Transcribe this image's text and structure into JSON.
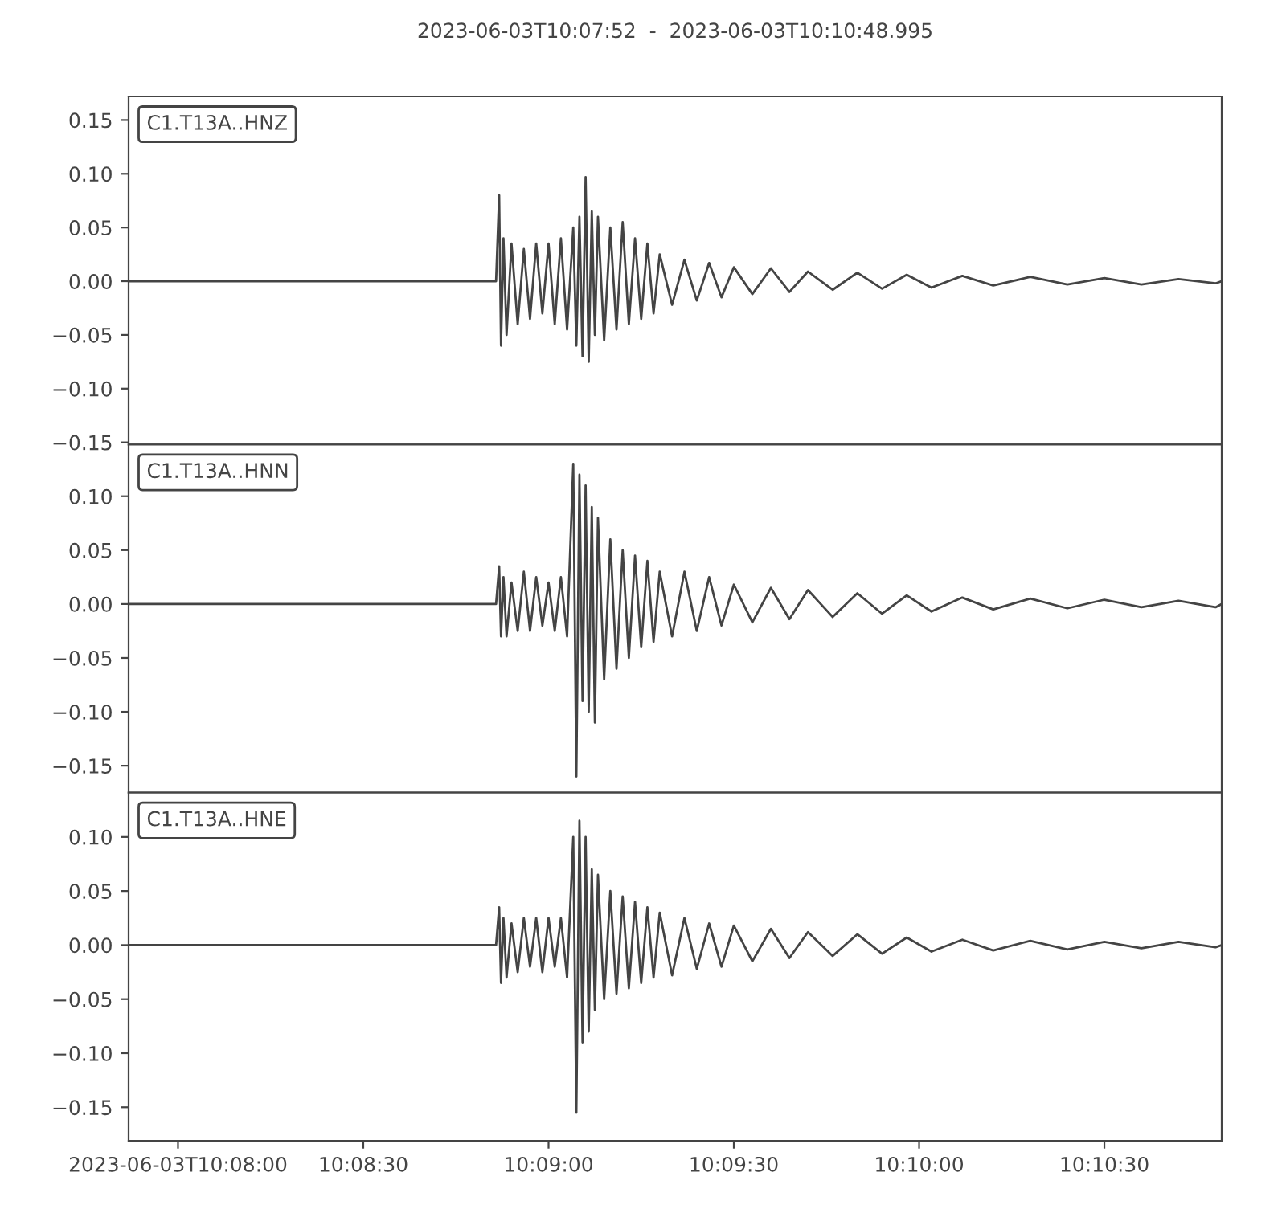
{
  "chart_data": [
    {
      "type": "line",
      "title": "2023-06-03T10:07:52  -  2023-06-03T10:10:48.995",
      "legend": "top left",
      "tick_labels": "y",
      "grid": false,
      "marker": "none",
      "line_style": "solid",
      "x": [
        "2023-06-03T10:07:52",
        "2023-06-03T10:08:51.5",
        "2023-06-03T10:08:52",
        "2023-06-03T10:08:52.3",
        "2023-06-03T10:08:52.7",
        "2023-06-03T10:08:53.2",
        "2023-06-03T10:08:54",
        "2023-06-03T10:08:55",
        "2023-06-03T10:08:56",
        "2023-06-03T10:08:57",
        "2023-06-03T10:08:58",
        "2023-06-03T10:08:59",
        "2023-06-03T10:09:00",
        "2023-06-03T10:09:01",
        "2023-06-03T10:09:02",
        "2023-06-03T10:09:03",
        "2023-06-03T10:09:04",
        "2023-06-03T10:09:04.5",
        "2023-06-03T10:09:05",
        "2023-06-03T10:09:05.5",
        "2023-06-03T10:09:06",
        "2023-06-03T10:09:06.5",
        "2023-06-03T10:09:07",
        "2023-06-03T10:09:07.5",
        "2023-06-03T10:09:08",
        "2023-06-03T10:09:09",
        "2023-06-03T10:09:10",
        "2023-06-03T10:09:11",
        "2023-06-03T10:09:12",
        "2023-06-03T10:09:13",
        "2023-06-03T10:09:14",
        "2023-06-03T10:09:15",
        "2023-06-03T10:09:16",
        "2023-06-03T10:09:17",
        "2023-06-03T10:09:18",
        "2023-06-03T10:09:20",
        "2023-06-03T10:09:22",
        "2023-06-03T10:09:24",
        "2023-06-03T10:09:26",
        "2023-06-03T10:09:28",
        "2023-06-03T10:09:30",
        "2023-06-03T10:09:33",
        "2023-06-03T10:09:36",
        "2023-06-03T10:09:39",
        "2023-06-03T10:09:42",
        "2023-06-03T10:09:46",
        "2023-06-03T10:09:50",
        "2023-06-03T10:09:54",
        "2023-06-03T10:09:58",
        "2023-06-03T10:10:02",
        "2023-06-03T10:10:07",
        "2023-06-03T10:10:12",
        "2023-06-03T10:10:18",
        "2023-06-03T10:10:24",
        "2023-06-03T10:10:30",
        "2023-06-03T10:10:36",
        "2023-06-03T10:10:42",
        "2023-06-03T10:10:48",
        "2023-06-03T10:10:48.995"
      ],
      "series": [
        {
          "name": "C1.T13A..HNZ",
          "color": "#444444",
          "values": [
            0,
            0,
            0.08,
            -0.06,
            0.04,
            -0.05,
            0.035,
            -0.04,
            0.03,
            -0.035,
            0.035,
            -0.03,
            0.035,
            -0.04,
            0.04,
            -0.045,
            0.05,
            -0.06,
            0.06,
            -0.07,
            0.097,
            -0.075,
            0.065,
            -0.05,
            0.06,
            -0.055,
            0.05,
            -0.045,
            0.055,
            -0.04,
            0.04,
            -0.035,
            0.035,
            -0.03,
            0.025,
            -0.022,
            0.02,
            -0.018,
            0.017,
            -0.015,
            0.013,
            -0.012,
            0.012,
            -0.01,
            0.009,
            -0.008,
            0.008,
            -0.007,
            0.006,
            -0.006,
            0.005,
            -0.004,
            0.004,
            -0.003,
            0.003,
            -0.003,
            0.002,
            -0.002,
            0
          ]
        }
      ],
      "xlim": [
        "2023-06-03T10:07:52",
        "2023-06-03T10:10:48.995"
      ],
      "ylim": [
        -0.152,
        0.172
      ],
      "yticks": [
        {
          "value": -0.15,
          "label": "−0.15"
        },
        {
          "value": -0.1,
          "label": "−0.10"
        },
        {
          "value": -0.05,
          "label": "−0.05"
        },
        {
          "value": 0,
          "label": "0.00"
        },
        {
          "value": 0.05,
          "label": "0.05"
        },
        {
          "value": 0.1,
          "label": "0.10"
        },
        {
          "value": 0.15,
          "label": "0.15"
        }
      ]
    },
    {
      "type": "line",
      "legend": "top left",
      "tick_labels": "y",
      "grid": false,
      "marker": "none",
      "line_style": "solid",
      "x": [
        "2023-06-03T10:07:52",
        "2023-06-03T10:08:51.5",
        "2023-06-03T10:08:52",
        "2023-06-03T10:08:52.3",
        "2023-06-03T10:08:52.7",
        "2023-06-03T10:08:53.2",
        "2023-06-03T10:08:54",
        "2023-06-03T10:08:55",
        "2023-06-03T10:08:56",
        "2023-06-03T10:08:57",
        "2023-06-03T10:08:58",
        "2023-06-03T10:08:59",
        "2023-06-03T10:09:00",
        "2023-06-03T10:09:01",
        "2023-06-03T10:09:02",
        "2023-06-03T10:09:03",
        "2023-06-03T10:09:04",
        "2023-06-03T10:09:04.5",
        "2023-06-03T10:09:05",
        "2023-06-03T10:09:05.5",
        "2023-06-03T10:09:06",
        "2023-06-03T10:09:06.5",
        "2023-06-03T10:09:07",
        "2023-06-03T10:09:07.5",
        "2023-06-03T10:09:08",
        "2023-06-03T10:09:09",
        "2023-06-03T10:09:10",
        "2023-06-03T10:09:11",
        "2023-06-03T10:09:12",
        "2023-06-03T10:09:13",
        "2023-06-03T10:09:14",
        "2023-06-03T10:09:15",
        "2023-06-03T10:09:16",
        "2023-06-03T10:09:17",
        "2023-06-03T10:09:18",
        "2023-06-03T10:09:20",
        "2023-06-03T10:09:22",
        "2023-06-03T10:09:24",
        "2023-06-03T10:09:26",
        "2023-06-03T10:09:28",
        "2023-06-03T10:09:30",
        "2023-06-03T10:09:33",
        "2023-06-03T10:09:36",
        "2023-06-03T10:09:39",
        "2023-06-03T10:09:42",
        "2023-06-03T10:09:46",
        "2023-06-03T10:09:50",
        "2023-06-03T10:09:54",
        "2023-06-03T10:09:58",
        "2023-06-03T10:10:02",
        "2023-06-03T10:10:07",
        "2023-06-03T10:10:12",
        "2023-06-03T10:10:18",
        "2023-06-03T10:10:24",
        "2023-06-03T10:10:30",
        "2023-06-03T10:10:36",
        "2023-06-03T10:10:42",
        "2023-06-03T10:10:48",
        "2023-06-03T10:10:48.995"
      ],
      "series": [
        {
          "name": "C1.T13A..HNN",
          "color": "#444444",
          "values": [
            0,
            0,
            0.035,
            -0.03,
            0.025,
            -0.03,
            0.02,
            -0.025,
            0.03,
            -0.025,
            0.025,
            -0.02,
            0.02,
            -0.025,
            0.025,
            -0.03,
            0.13,
            -0.16,
            0.12,
            -0.09,
            0.11,
            -0.1,
            0.09,
            -0.11,
            0.08,
            -0.07,
            0.06,
            -0.06,
            0.05,
            -0.05,
            0.045,
            -0.04,
            0.04,
            -0.035,
            0.03,
            -0.03,
            0.03,
            -0.025,
            0.025,
            -0.02,
            0.018,
            -0.017,
            0.015,
            -0.014,
            0.013,
            -0.012,
            0.01,
            -0.009,
            0.008,
            -0.007,
            0.006,
            -0.005,
            0.005,
            -0.004,
            0.004,
            -0.003,
            0.003,
            -0.003,
            0
          ]
        }
      ],
      "xlim": [
        "2023-06-03T10:07:52",
        "2023-06-03T10:10:48.995"
      ],
      "ylim": [
        -0.175,
        0.148
      ],
      "yticks": [
        {
          "value": -0.15,
          "label": "−0.15"
        },
        {
          "value": -0.1,
          "label": "−0.10"
        },
        {
          "value": -0.05,
          "label": "−0.05"
        },
        {
          "value": 0,
          "label": "0.00"
        },
        {
          "value": 0.05,
          "label": "0.05"
        },
        {
          "value": 0.1,
          "label": "0.10"
        }
      ]
    },
    {
      "type": "line",
      "legend": "top left",
      "grid": false,
      "marker": "none",
      "line_style": "solid",
      "x": [
        "2023-06-03T10:07:52",
        "2023-06-03T10:08:51.5",
        "2023-06-03T10:08:52",
        "2023-06-03T10:08:52.3",
        "2023-06-03T10:08:52.7",
        "2023-06-03T10:08:53.2",
        "2023-06-03T10:08:54",
        "2023-06-03T10:08:55",
        "2023-06-03T10:08:56",
        "2023-06-03T10:08:57",
        "2023-06-03T10:08:58",
        "2023-06-03T10:08:59",
        "2023-06-03T10:09:00",
        "2023-06-03T10:09:01",
        "2023-06-03T10:09:02",
        "2023-06-03T10:09:03",
        "2023-06-03T10:09:04",
        "2023-06-03T10:09:04.5",
        "2023-06-03T10:09:05",
        "2023-06-03T10:09:05.5",
        "2023-06-03T10:09:06",
        "2023-06-03T10:09:06.5",
        "2023-06-03T10:09:07",
        "2023-06-03T10:09:07.5",
        "2023-06-03T10:09:08",
        "2023-06-03T10:09:09",
        "2023-06-03T10:09:10",
        "2023-06-03T10:09:11",
        "2023-06-03T10:09:12",
        "2023-06-03T10:09:13",
        "2023-06-03T10:09:14",
        "2023-06-03T10:09:15",
        "2023-06-03T10:09:16",
        "2023-06-03T10:09:17",
        "2023-06-03T10:09:18",
        "2023-06-03T10:09:20",
        "2023-06-03T10:09:22",
        "2023-06-03T10:09:24",
        "2023-06-03T10:09:26",
        "2023-06-03T10:09:28",
        "2023-06-03T10:09:30",
        "2023-06-03T10:09:33",
        "2023-06-03T10:09:36",
        "2023-06-03T10:09:39",
        "2023-06-03T10:09:42",
        "2023-06-03T10:09:46",
        "2023-06-03T10:09:50",
        "2023-06-03T10:09:54",
        "2023-06-03T10:09:58",
        "2023-06-03T10:10:02",
        "2023-06-03T10:10:07",
        "2023-06-03T10:10:12",
        "2023-06-03T10:10:18",
        "2023-06-03T10:10:24",
        "2023-06-03T10:10:30",
        "2023-06-03T10:10:36",
        "2023-06-03T10:10:42",
        "2023-06-03T10:10:48",
        "2023-06-03T10:10:48.995"
      ],
      "series": [
        {
          "name": "C1.T13A..HNE",
          "color": "#444444",
          "values": [
            0,
            0,
            0.035,
            -0.035,
            0.025,
            -0.03,
            0.02,
            -0.025,
            0.025,
            -0.02,
            0.025,
            -0.025,
            0.025,
            -0.02,
            0.025,
            -0.03,
            0.1,
            -0.155,
            0.115,
            -0.09,
            0.1,
            -0.08,
            0.07,
            -0.06,
            0.065,
            -0.05,
            0.05,
            -0.045,
            0.045,
            -0.04,
            0.04,
            -0.035,
            0.035,
            -0.03,
            0.03,
            -0.028,
            0.025,
            -0.022,
            0.02,
            -0.02,
            0.018,
            -0.015,
            0.015,
            -0.012,
            0.012,
            -0.01,
            0.01,
            -0.008,
            0.007,
            -0.006,
            0.005,
            -0.005,
            0.004,
            -0.004,
            0.003,
            -0.003,
            0.003,
            -0.002,
            0
          ]
        }
      ],
      "xlim": [
        "2023-06-03T10:07:52",
        "2023-06-03T10:10:48.995"
      ],
      "xticks": [
        {
          "value": "2023-06-03T10:08:00",
          "label": "2023-06-03T10:08:00"
        },
        {
          "value": "2023-06-03T10:08:30",
          "label": "10:08:30"
        },
        {
          "value": "2023-06-03T10:09:00",
          "label": "10:09:00"
        },
        {
          "value": "2023-06-03T10:09:30",
          "label": "10:09:30"
        },
        {
          "value": "2023-06-03T10:10:00",
          "label": "10:10:00"
        },
        {
          "value": "2023-06-03T10:10:30",
          "label": "10:10:30"
        }
      ],
      "ylim": [
        -0.181,
        0.141
      ],
      "yticks": [
        {
          "value": -0.15,
          "label": "−0.15"
        },
        {
          "value": -0.1,
          "label": "−0.10"
        },
        {
          "value": -0.05,
          "label": "−0.05"
        },
        {
          "value": 0,
          "label": "0.00"
        },
        {
          "value": 0.05,
          "label": "0.05"
        },
        {
          "value": 0.1,
          "label": "0.10"
        }
      ]
    }
  ]
}
